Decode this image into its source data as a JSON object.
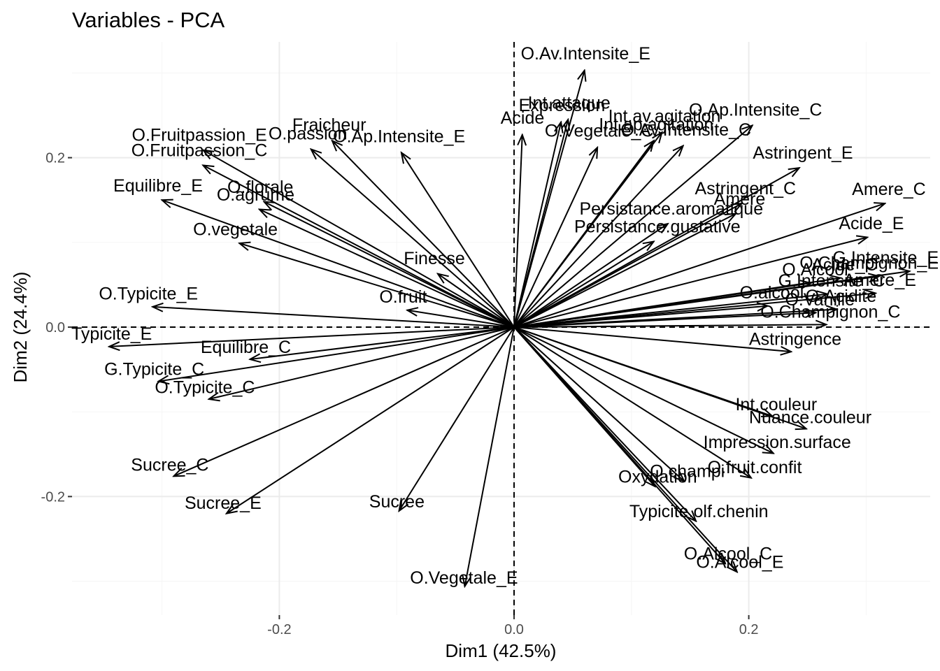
{
  "chart_data": {
    "type": "scatter",
    "title": "Variables - PCA",
    "xlabel": "Dim1 (42.5%)",
    "ylabel": "Dim2 (24.4%)",
    "xlim": [
      -0.377,
      0.355
    ],
    "ylim": [
      -0.318,
      0.302
    ],
    "xticks": [
      -0.2,
      0.0,
      0.2
    ],
    "yticks": [
      -0.2,
      0.0,
      0.2
    ],
    "xtick_labels": [
      "-0.2",
      "0.0",
      "0.2"
    ],
    "ytick_labels": [
      "-0.2",
      "0.0",
      "0.2"
    ],
    "grid": true,
    "reference_lines": "dashed at x=0 and y=0",
    "arrow_color": "#000000",
    "variables": [
      {
        "name": "O.Av.Intensite_E",
        "x": 0.06,
        "y": 0.303
      },
      {
        "name": "Expression",
        "x": 0.04,
        "y": 0.242
      },
      {
        "name": "Int.attaque",
        "x": 0.046,
        "y": 0.245
      },
      {
        "name": "Acide",
        "x": 0.007,
        "y": 0.227
      },
      {
        "name": "O.Vegetale_C",
        "x": 0.071,
        "y": 0.212
      },
      {
        "name": "Int.av.agitation",
        "x": 0.126,
        "y": 0.23
      },
      {
        "name": "Int.ap.agitation",
        "x": 0.119,
        "y": 0.22
      },
      {
        "name": "O.Av.Intensite_C",
        "x": 0.144,
        "y": 0.214
      },
      {
        "name": "O.Ap.Intensite_C",
        "x": 0.203,
        "y": 0.238
      },
      {
        "name": "Astringent_E",
        "x": 0.243,
        "y": 0.188
      },
      {
        "name": "Astringent_C",
        "x": 0.194,
        "y": 0.146
      },
      {
        "name": "Amere",
        "x": 0.189,
        "y": 0.134
      },
      {
        "name": "Persistance.aromatique",
        "x": 0.131,
        "y": 0.122
      },
      {
        "name": "Persistance.gustative",
        "x": 0.119,
        "y": 0.101
      },
      {
        "name": "Amere_C",
        "x": 0.316,
        "y": 0.146
      },
      {
        "name": "Acide_E",
        "x": 0.301,
        "y": 0.106
      },
      {
        "name": "G.Intensite_E",
        "x": 0.337,
        "y": 0.066
      },
      {
        "name": "Acide_C",
        "x": 0.278,
        "y": 0.058
      },
      {
        "name": "O.Champignon_E",
        "x": 0.311,
        "y": 0.06
      },
      {
        "name": "O.Alcool",
        "x": 0.253,
        "y": 0.052
      },
      {
        "name": "G.Intensite_C",
        "x": 0.267,
        "y": 0.039
      },
      {
        "name": "Amere_E",
        "x": 0.308,
        "y": 0.04
      },
      {
        "name": "O.alcool",
        "x": 0.216,
        "y": 0.025
      },
      {
        "name": "O.Acidite",
        "x": 0.275,
        "y": 0.021
      },
      {
        "name": "O.Vanille",
        "x": 0.257,
        "y": 0.017
      },
      {
        "name": "O.Champignon_C",
        "x": 0.266,
        "y": 0.003
      },
      {
        "name": "Astringence",
        "x": 0.236,
        "y": -0.029
      },
      {
        "name": "Int.couleur",
        "x": 0.22,
        "y": -0.105
      },
      {
        "name": "Nuance.couleur",
        "x": 0.249,
        "y": -0.12
      },
      {
        "name": "Impression.surface",
        "x": 0.221,
        "y": -0.149
      },
      {
        "name": "O.fruit.confit",
        "x": 0.202,
        "y": -0.178
      },
      {
        "name": "O.champi",
        "x": 0.145,
        "y": -0.182
      },
      {
        "name": "Oxydation",
        "x": 0.12,
        "y": -0.188
      },
      {
        "name": "Typicite.olf.chenin",
        "x": 0.155,
        "y": -0.229
      },
      {
        "name": "O.Alcool_C",
        "x": 0.18,
        "y": -0.279
      },
      {
        "name": "O.Alcool_E",
        "x": 0.19,
        "y": -0.289
      },
      {
        "name": "O.Vegetale_E",
        "x": -0.042,
        "y": -0.306
      },
      {
        "name": "Sucree",
        "x": -0.098,
        "y": -0.217
      },
      {
        "name": "Sucree_E",
        "x": -0.245,
        "y": -0.22
      },
      {
        "name": "Sucree_C",
        "x": -0.29,
        "y": -0.176
      },
      {
        "name": "O.Typicite_C",
        "x": -0.26,
        "y": -0.085
      },
      {
        "name": "G.Typicite_C",
        "x": -0.303,
        "y": -0.064
      },
      {
        "name": "Equilibre_C",
        "x": -0.225,
        "y": -0.038
      },
      {
        "name": "Typicite_E",
        "x": -0.345,
        "y": -0.023
      },
      {
        "name": "O.Typicite_E",
        "x": -0.308,
        "y": 0.024
      },
      {
        "name": "O.fruit",
        "x": -0.091,
        "y": 0.02
      },
      {
        "name": "Finesse",
        "x": -0.065,
        "y": 0.063
      },
      {
        "name": "O.vegetale",
        "x": -0.234,
        "y": 0.099
      },
      {
        "name": "Equilibre_E",
        "x": -0.3,
        "y": 0.15
      },
      {
        "name": "O.agrume",
        "x": -0.217,
        "y": 0.139
      },
      {
        "name": "O.florale",
        "x": -0.213,
        "y": 0.148
      },
      {
        "name": "O.Fruitpassion_C",
        "x": -0.265,
        "y": 0.191
      },
      {
        "name": "O.Fruitpassion_E",
        "x": -0.265,
        "y": 0.209
      },
      {
        "name": "O.passion",
        "x": -0.173,
        "y": 0.21
      },
      {
        "name": "Fraicheur",
        "x": -0.155,
        "y": 0.22
      },
      {
        "name": "O.Ap.Intensite_E",
        "x": -0.096,
        "y": 0.206
      }
    ]
  }
}
